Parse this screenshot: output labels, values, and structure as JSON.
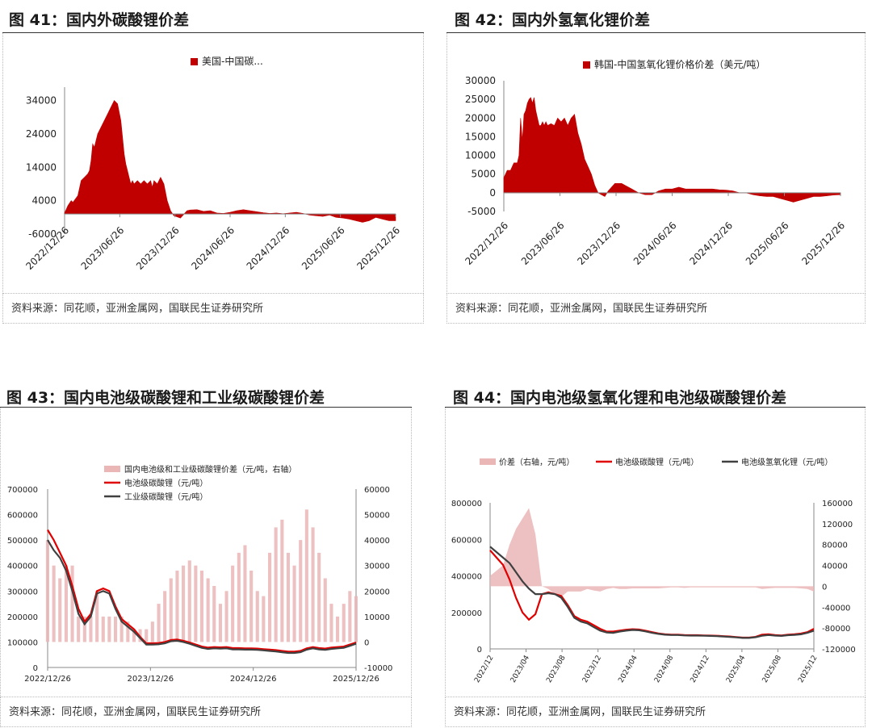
{
  "colors": {
    "red": "#c00000",
    "brightRed": "#e00000",
    "darkGray": "#404040",
    "pink": "#eab6b6",
    "axis": "#888888",
    "text": "#222222"
  },
  "source_text": "资料来源：同花顺，亚洲金属网，国联民生证券研究所",
  "panels": [
    {
      "title": "图 41：国内外碳酸锂价差",
      "chart_data": {
        "type": "area",
        "legend": [
          "美国-中国碳..."
        ],
        "legend_placement": "top-center",
        "y_ticks": [
          "34000",
          "24000",
          "14000",
          "4000",
          "-6000"
        ],
        "x_ticks": [
          "2022/12/26",
          "2023/06/26",
          "2023/12/26",
          "2024/06/26",
          "2024/12/26",
          "2025/06/26",
          "2025/12/26"
        ],
        "ylim": [
          -6000,
          38000
        ],
        "series": [
          {
            "name": "美国-中国碳...",
            "x": [
              0,
              0.01,
              0.02,
              0.025,
              0.04,
              0.05,
              0.06,
              0.07,
              0.075,
              0.08,
              0.085,
              0.09,
              0.1,
              0.11,
              0.13,
              0.14,
              0.15,
              0.16,
              0.17,
              0.18,
              0.185,
              0.19,
              0.195,
              0.2,
              0.205,
              0.21,
              0.22,
              0.23,
              0.24,
              0.25,
              0.26,
              0.265,
              0.27,
              0.28,
              0.29,
              0.3,
              0.31,
              0.315,
              0.32,
              0.33,
              0.35,
              0.37,
              0.38,
              0.4,
              0.42,
              0.44,
              0.46,
              0.48,
              0.5,
              0.52,
              0.54,
              0.56,
              0.58,
              0.6,
              0.62,
              0.64,
              0.66,
              0.68,
              0.7,
              0.72,
              0.74,
              0.76,
              0.78,
              0.8,
              0.82,
              0.84,
              0.86,
              0.88,
              0.9,
              0.92,
              0.94,
              0.96,
              0.98,
              1.0
            ],
            "values": [
              300,
              2500,
              4000,
              3500,
              5500,
              10000,
              11000,
              12000,
              13000,
              16000,
              21000,
              20000,
              24000,
              26000,
              30000,
              32000,
              34000,
              33000,
              28000,
              18000,
              15000,
              13000,
              11000,
              9000,
              10000,
              9000,
              10000,
              9000,
              10000,
              9000,
              10000,
              8000,
              10000,
              9000,
              11000,
              9000,
              4000,
              2500,
              1000,
              -500,
              -1200,
              1000,
              1200,
              1300,
              800,
              1000,
              300,
              200,
              500,
              1000,
              1300,
              1000,
              700,
              400,
              200,
              300,
              100,
              300,
              500,
              200,
              -300,
              -500,
              -700,
              -300,
              -1000,
              -1200,
              -1500,
              -2000,
              -2500,
              -2000,
              -1000,
              -1500,
              -2000,
              -2000
            ]
          }
        ]
      }
    },
    {
      "title": "图 42：国内外氢氧化锂价差",
      "chart_data": {
        "type": "area",
        "legend": [
          "韩国-中国氢氧化锂价格价差（美元/吨）"
        ],
        "legend_placement": "top-center",
        "y_ticks": [
          "30000",
          "25000",
          "20000",
          "15000",
          "10000",
          "5000",
          "0",
          "-5000"
        ],
        "x_ticks": [
          "2022/12/26",
          "2023/06/26",
          "2023/12/26",
          "2024/06/26",
          "2024/12/26",
          "2025/06/26",
          "2025/12/26"
        ],
        "ylim": [
          -5000,
          30000
        ],
        "series": [
          {
            "name": "韩国-中国氢氧化锂价格价差（美元/吨）",
            "x": [
              0,
              0.01,
              0.02,
              0.03,
              0.04,
              0.045,
              0.05,
              0.055,
              0.06,
              0.065,
              0.07,
              0.075,
              0.08,
              0.085,
              0.09,
              0.095,
              0.1,
              0.105,
              0.11,
              0.115,
              0.12,
              0.125,
              0.13,
              0.14,
              0.15,
              0.16,
              0.17,
              0.18,
              0.19,
              0.2,
              0.21,
              0.22,
              0.23,
              0.24,
              0.25,
              0.26,
              0.27,
              0.28,
              0.29,
              0.3,
              0.31,
              0.32,
              0.33,
              0.34,
              0.35,
              0.36,
              0.37,
              0.38,
              0.4,
              0.42,
              0.44,
              0.46,
              0.48,
              0.5,
              0.52,
              0.54,
              0.56,
              0.58,
              0.6,
              0.62,
              0.64,
              0.66,
              0.68,
              0.7,
              0.72,
              0.74,
              0.76,
              0.78,
              0.8,
              0.82,
              0.84,
              0.86,
              0.88,
              0.9,
              0.92,
              0.94,
              0.96,
              0.98,
              1.0
            ],
            "values": [
              4000,
              6000,
              6000,
              8000,
              8000,
              10000,
              20000,
              14000,
              21000,
              22000,
              24000,
              25000,
              25500,
              24000,
              25500,
              22000,
              20000,
              18000,
              18000,
              19000,
              18000,
              19000,
              18000,
              18500,
              18000,
              20000,
              19000,
              20000,
              18000,
              20000,
              21000,
              16000,
              13000,
              9000,
              7000,
              5000,
              2000,
              0,
              -500,
              -1000,
              500,
              1500,
              2500,
              2500,
              2500,
              2000,
              1500,
              1000,
              0,
              -500,
              -500,
              500,
              1000,
              1000,
              1500,
              1000,
              1000,
              1000,
              1000,
              1000,
              800,
              700,
              500,
              0,
              0,
              -500,
              -800,
              -1000,
              -1000,
              -1500,
              -2000,
              -2500,
              -2000,
              -1500,
              -1000,
              -1000,
              -800,
              -600,
              -500
            ]
          }
        ]
      }
    },
    {
      "title": "图 43：国内电池级碳酸锂和工业级碳酸锂价差",
      "chart_data": {
        "type": "line",
        "legend": [
          "国内电池级和工业级碳酸锂价差（元/吨，右轴）",
          "电池级碳酸锂（元/吨）",
          "工业级碳酸锂（元/吨）"
        ],
        "legend_placement": "top-left",
        "y_ticks_left": [
          "700000",
          "600000",
          "500000",
          "400000",
          "300000",
          "200000",
          "100000",
          "0"
        ],
        "y_ticks_right": [
          "60000",
          "50000",
          "40000",
          "30000",
          "20000",
          "10000",
          "0",
          "-10000"
        ],
        "x_ticks": [
          "2022/12/26",
          "2023/12/26",
          "2024/12/26",
          "2025/12/26"
        ],
        "ylim_left": [
          0,
          700000
        ],
        "ylim_right": [
          -10000,
          60000
        ],
        "x": [
          0,
          0.02,
          0.04,
          0.06,
          0.08,
          0.1,
          0.12,
          0.14,
          0.16,
          0.18,
          0.2,
          0.22,
          0.24,
          0.26,
          0.28,
          0.3,
          0.32,
          0.34,
          0.36,
          0.38,
          0.4,
          0.42,
          0.44,
          0.46,
          0.48,
          0.5,
          0.52,
          0.54,
          0.56,
          0.58,
          0.6,
          0.62,
          0.64,
          0.66,
          0.68,
          0.7,
          0.72,
          0.74,
          0.76,
          0.78,
          0.8,
          0.82,
          0.84,
          0.86,
          0.88,
          0.9,
          0.92,
          0.94,
          0.96,
          0.98,
          1.0
        ],
        "series": [
          {
            "name": "电池级碳酸锂（元/吨）",
            "axis": "left",
            "values": [
              540000,
              500000,
              450000,
              400000,
              320000,
              230000,
              180000,
              210000,
              300000,
              310000,
              300000,
              240000,
              190000,
              170000,
              150000,
              120000,
              95000,
              95000,
              96000,
              100000,
              108000,
              110000,
              105000,
              98000,
              90000,
              82000,
              78000,
              80000,
              79000,
              80000,
              76000,
              76000,
              75000,
              75000,
              74000,
              72000,
              70000,
              68000,
              65000,
              62000,
              62000,
              65000,
              75000,
              80000,
              76000,
              74000,
              78000,
              80000,
              82000,
              90000,
              98000
            ]
          },
          {
            "name": "工业级碳酸锂（元/吨）",
            "axis": "left",
            "values": [
              500000,
              460000,
              430000,
              380000,
              300000,
              210000,
              170000,
              200000,
              290000,
              300000,
              290000,
              230000,
              180000,
              160000,
              140000,
              115000,
              90000,
              90000,
              91000,
              95000,
              103000,
              105000,
              100000,
              93000,
              85000,
              77000,
              73000,
              75000,
              74000,
              75000,
              71000,
              71000,
              70000,
              70000,
              69000,
              67000,
              65000,
              63000,
              60000,
              57000,
              57000,
              60000,
              70000,
              75000,
              71000,
              69000,
              73000,
              75000,
              77000,
              85000,
              93000
            ]
          },
          {
            "name": "国内电池级和工业级碳酸锂价差（元/吨，右轴）",
            "type": "bar",
            "axis": "right",
            "values": [
              40000,
              30000,
              25000,
              30000,
              30000,
              10000,
              10000,
              10000,
              20000,
              10000,
              10000,
              10000,
              10000,
              8000,
              5000,
              5000,
              5000,
              8000,
              15000,
              20000,
              25000,
              28000,
              30000,
              32000,
              30000,
              28000,
              25000,
              22000,
              15000,
              20000,
              30000,
              35000,
              38000,
              28000,
              20000,
              18000,
              35000,
              45000,
              48000,
              35000,
              30000,
              40000,
              52000,
              45000,
              35000,
              25000,
              15000,
              10000,
              15000,
              20000,
              18000
            ]
          }
        ]
      }
    },
    {
      "title": "图 44：国内电池级氢氧化锂和电池级碳酸锂价差",
      "chart_data": {
        "type": "line",
        "legend": [
          "价差（右轴，元/吨）",
          "电池级碳酸锂（元/吨）",
          "电池级氢氧化锂（元/吨）"
        ],
        "legend_placement": "top-center",
        "y_ticks_left": [
          "800000",
          "600000",
          "400000",
          "200000",
          "0"
        ],
        "y_ticks_right": [
          "160000",
          "120000",
          "80000",
          "40000",
          "0",
          "-40000",
          "-80000",
          "-120000"
        ],
        "x_ticks": [
          "2022/12",
          "2023/04",
          "2023/08",
          "2023/12",
          "2024/04",
          "2024/08",
          "2024/12",
          "2025/04",
          "2025/08",
          "2025/12"
        ],
        "ylim_left": [
          0,
          800000
        ],
        "ylim_right": [
          -120000,
          160000
        ],
        "x": [
          0,
          0.02,
          0.04,
          0.06,
          0.08,
          0.1,
          0.12,
          0.14,
          0.16,
          0.18,
          0.2,
          0.22,
          0.24,
          0.26,
          0.28,
          0.3,
          0.32,
          0.34,
          0.36,
          0.38,
          0.4,
          0.42,
          0.44,
          0.46,
          0.48,
          0.5,
          0.52,
          0.54,
          0.56,
          0.58,
          0.6,
          0.62,
          0.64,
          0.66,
          0.68,
          0.7,
          0.72,
          0.74,
          0.76,
          0.78,
          0.8,
          0.82,
          0.84,
          0.86,
          0.88,
          0.9,
          0.92,
          0.94,
          0.96,
          0.98,
          1.0
        ],
        "series": [
          {
            "name": "电池级碳酸锂（元/吨）",
            "axis": "left",
            "values": [
              540000,
              500000,
              460000,
              380000,
              280000,
              200000,
              160000,
              190000,
              300000,
              310000,
              300000,
              290000,
              240000,
              180000,
              160000,
              150000,
              130000,
              110000,
              95000,
              95000,
              100000,
              105000,
              108000,
              106000,
              100000,
              92000,
              85000,
              80000,
              78000,
              78000,
              76000,
              75000,
              75000,
              74000,
              73000,
              72000,
              70000,
              68000,
              65000,
              62000,
              62000,
              66000,
              78000,
              80000,
              76000,
              74000,
              78000,
              80000,
              84000,
              92000,
              110000
            ]
          },
          {
            "name": "电池级氢氧化锂（元/吨）",
            "axis": "left",
            "values": [
              560000,
              530000,
              500000,
              470000,
              420000,
              370000,
              330000,
              300000,
              300000,
              305000,
              300000,
              280000,
              230000,
              170000,
              150000,
              140000,
              120000,
              100000,
              90000,
              88000,
              95000,
              100000,
              104000,
              102000,
              96000,
              88000,
              82000,
              78000,
              76000,
              76000,
              74000,
              73000,
              73000,
              72000,
              71000,
              70000,
              68000,
              66000,
              63000,
              60000,
              60000,
              64000,
              72000,
              76000,
              73000,
              71000,
              75000,
              77000,
              80000,
              88000,
              100000
            ]
          },
          {
            "name": "价差（右轴，元/吨）",
            "type": "area",
            "axis": "right",
            "values": [
              20000,
              30000,
              40000,
              80000,
              110000,
              130000,
              150000,
              100000,
              0,
              -5000,
              -15000,
              -20000,
              -10000,
              -10000,
              -10000,
              -5000,
              -8000,
              -10000,
              -5000,
              -3000,
              -5000,
              -5000,
              -4000,
              -4000,
              -4000,
              -4000,
              -4000,
              -3000,
              -2000,
              -2000,
              -3000,
              -2000,
              -2000,
              -2000,
              -2000,
              -2000,
              -2000,
              -2000,
              -2000,
              -2000,
              -2000,
              -2000,
              -5000,
              -4000,
              -3000,
              -3000,
              -3000,
              -3000,
              -4000,
              -5000,
              -10000
            ]
          }
        ]
      }
    }
  ]
}
